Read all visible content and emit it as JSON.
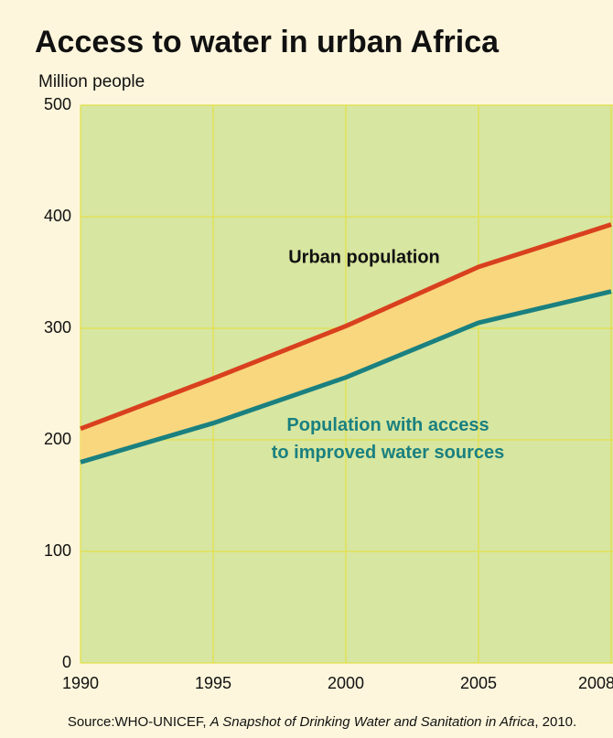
{
  "chart_data": {
    "type": "line",
    "title": "Access to water in urban Africa",
    "y_label": "Million people",
    "categories": [
      "1990",
      "1995",
      "2000",
      "2005",
      "2008"
    ],
    "series": [
      {
        "name": "Urban population",
        "color": "#d9401e",
        "values": [
          210,
          255,
          302,
          355,
          393
        ]
      },
      {
        "name": [
          "Population with access",
          "to improved water sources"
        ],
        "color": "#1a8080",
        "values": [
          180,
          215,
          256,
          305,
          333
        ]
      }
    ],
    "fill_between_color": "#f9d77e",
    "ylim": [
      0,
      500
    ],
    "yticks": [
      0,
      100,
      200,
      300,
      400,
      500
    ],
    "grid": true,
    "source": [
      "Source:WHO-UNICEF, ",
      "A Snapshot of Drinking Water and Sanitation in Africa",
      ", 2010."
    ]
  }
}
